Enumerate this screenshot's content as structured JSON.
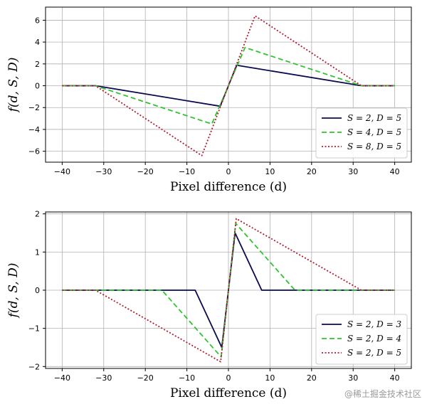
{
  "chart_data": [
    {
      "type": "line",
      "xlabel": "Pixel difference (d)",
      "ylabel": "f(d, S, D)",
      "xlim": [
        -44,
        44
      ],
      "ylim": [
        -7.0,
        7.2
      ],
      "xticks": [
        -40,
        -30,
        -20,
        -10,
        0,
        10,
        20,
        30,
        40
      ],
      "yticks": [
        -6,
        -4,
        -2,
        0,
        2,
        4,
        6
      ],
      "grid": true,
      "legend_position": "lower-right",
      "series": [
        {
          "name": "S = 2, D = 5",
          "color": "#0a0a50",
          "dash": "solid",
          "x": [
            -40,
            -32,
            -2,
            2,
            32,
            40
          ],
          "y": [
            0,
            0,
            -1.875,
            1.875,
            0,
            0
          ]
        },
        {
          "name": "S = 4, D = 5",
          "color": "#2ec42e",
          "dash": "dashed",
          "x": [
            -40,
            -32,
            -4,
            4,
            32,
            40
          ],
          "y": [
            0,
            0,
            -3.5,
            3.5,
            0,
            0
          ]
        },
        {
          "name": "S = 8, D = 5",
          "color": "#b01c2e",
          "dash": "dotted",
          "x": [
            -40,
            -32,
            -6.4,
            6.4,
            32,
            40
          ],
          "y": [
            0,
            0,
            -6.4,
            6.4,
            0,
            0
          ]
        }
      ]
    },
    {
      "type": "line",
      "xlabel": "Pixel difference (d)",
      "ylabel": "f(d, S, D)",
      "xlim": [
        -44,
        44
      ],
      "ylim": [
        -2.05,
        2.05
      ],
      "xticks": [
        -40,
        -30,
        -20,
        -10,
        0,
        10,
        20,
        30,
        40
      ],
      "yticks": [
        -2,
        -1,
        0,
        1,
        2
      ],
      "grid": true,
      "legend_position": "lower-right",
      "series": [
        {
          "name": "S = 2, D = 3",
          "color": "#0a0a50",
          "dash": "solid",
          "x": [
            -40,
            -8,
            -1.6,
            1.6,
            8,
            40
          ],
          "y": [
            0,
            0,
            -1.5,
            1.5,
            0,
            0
          ]
        },
        {
          "name": "S = 2, D = 4",
          "color": "#2ec42e",
          "dash": "dashed",
          "x": [
            -40,
            -16,
            -1.75,
            1.75,
            16,
            40
          ],
          "y": [
            0,
            0,
            -1.75,
            1.75,
            0,
            0
          ]
        },
        {
          "name": "S = 2, D = 5",
          "color": "#b01c2e",
          "dash": "dotted",
          "x": [
            -40,
            -32,
            -1.875,
            1.875,
            32,
            40
          ],
          "y": [
            0,
            0,
            -1.875,
            1.875,
            0,
            0
          ]
        }
      ]
    }
  ],
  "watermark": "@稀土掘金技术社区"
}
